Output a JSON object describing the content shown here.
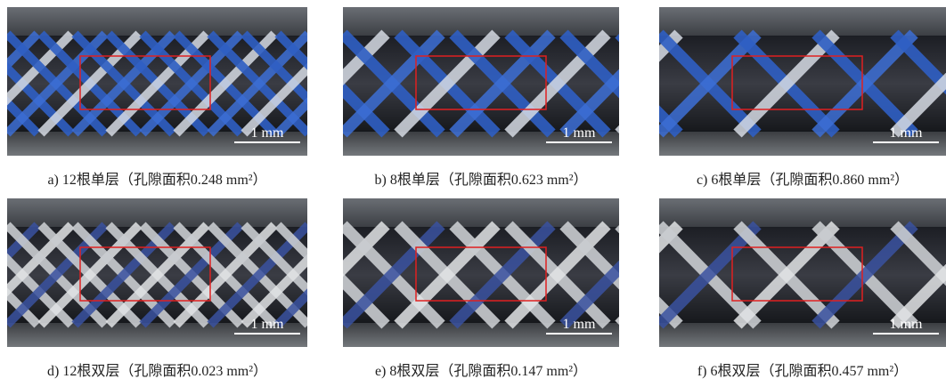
{
  "panels": [
    {
      "scale": "1 mm",
      "caption": "a) 12根单层（孔隙面积0.248 mm²）"
    },
    {
      "scale": "1 mm",
      "caption": "b) 8根单层（孔隙面积0.623 mm²）"
    },
    {
      "scale": "1 mm",
      "caption": "c) 6根单层（孔隙面积0.860 mm²）"
    },
    {
      "scale": "1 mm",
      "caption": "d) 12根双层（孔隙面积0.023 mm²）"
    },
    {
      "scale": "1 mm",
      "caption": "e) 8根双层（孔隙面积0.147 mm²）"
    },
    {
      "scale": "1 mm",
      "caption": "f) 6根双层（孔隙面积0.457 mm²）"
    }
  ]
}
